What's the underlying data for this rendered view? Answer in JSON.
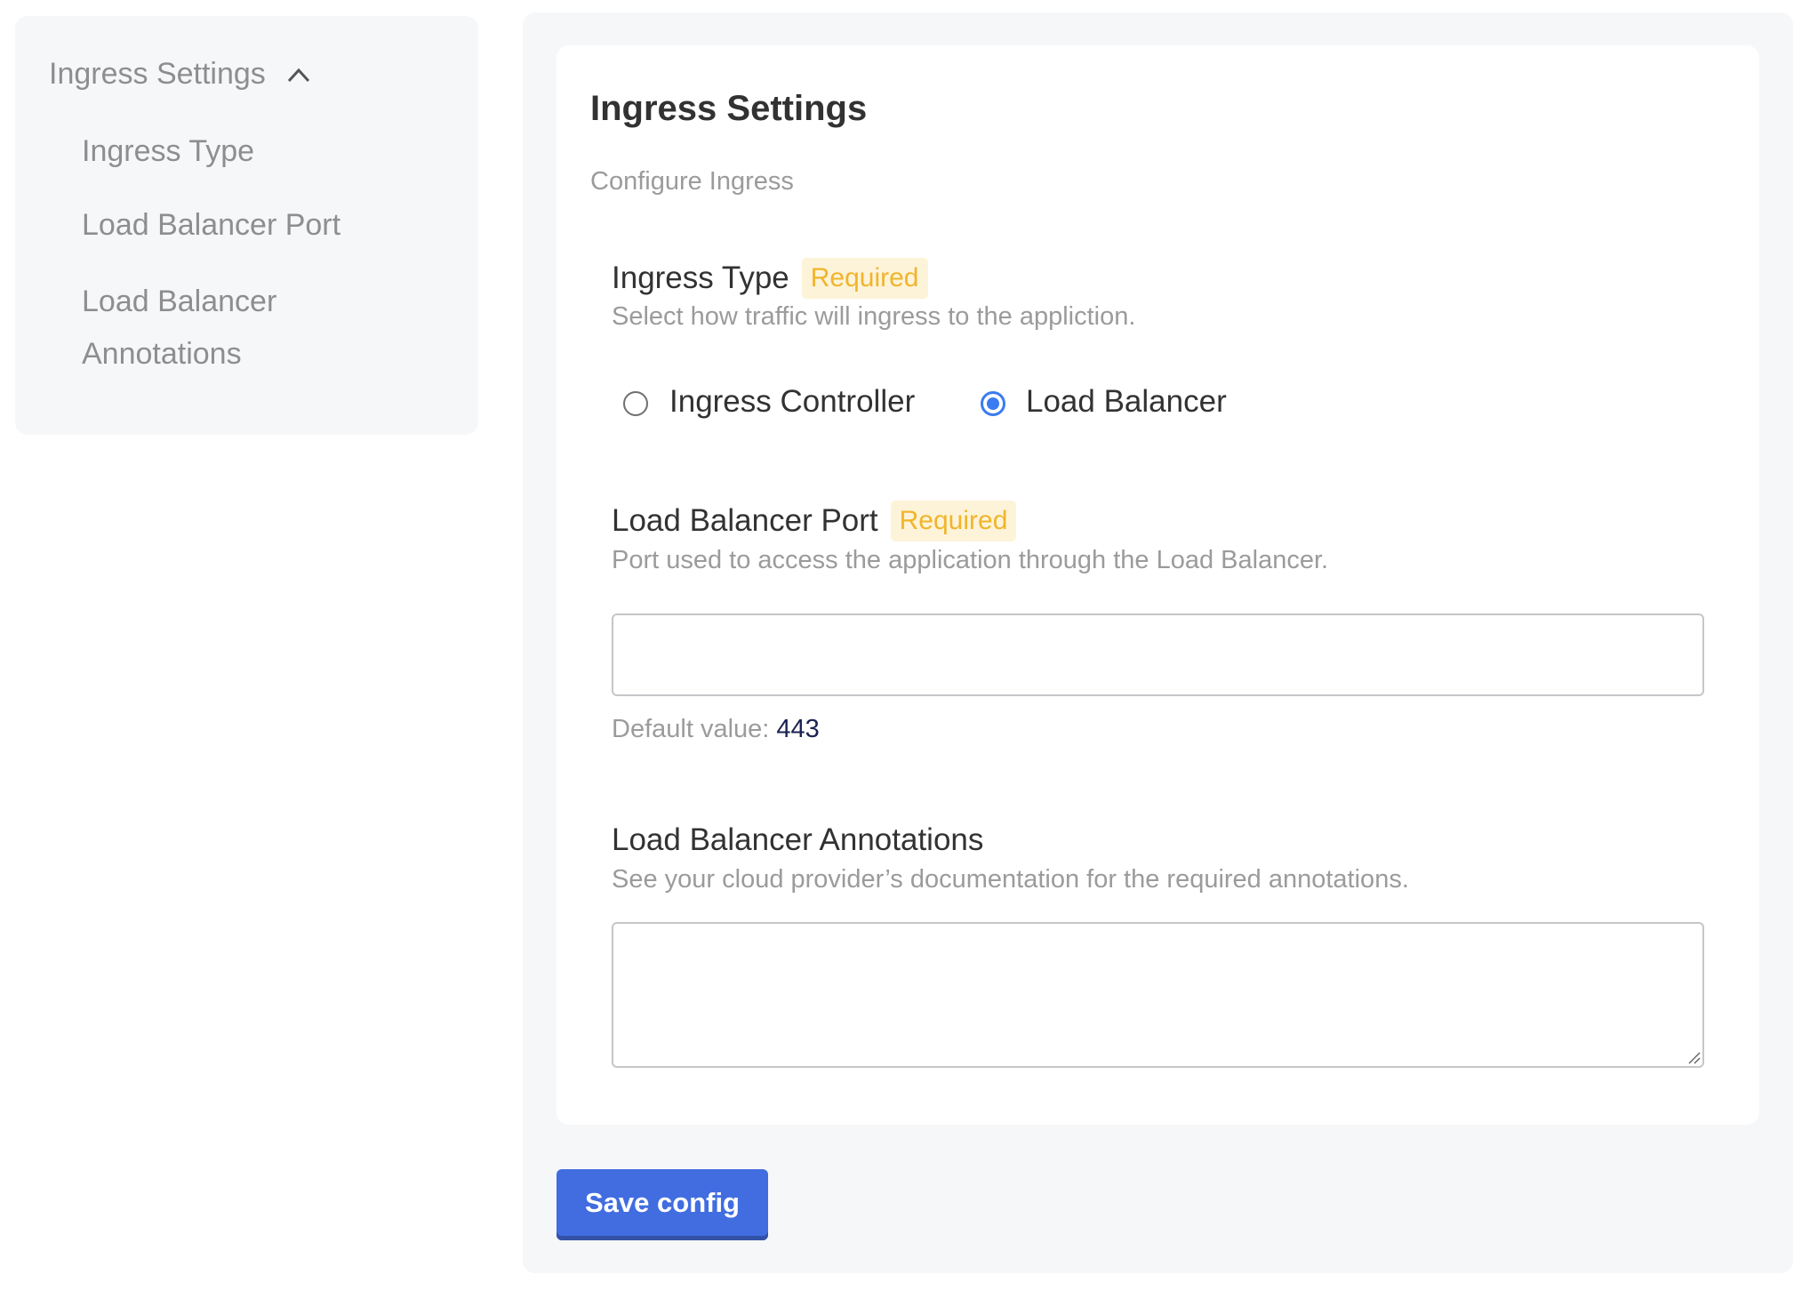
{
  "sidebar": {
    "header": "Ingress Settings",
    "header_icon": "chevron-up-icon",
    "items": [
      {
        "label": "Ingress Type"
      },
      {
        "label": "Load Balancer Port"
      },
      {
        "label_line1": "Load Balancer",
        "label_line2": "Annotations"
      }
    ]
  },
  "main": {
    "title": "Ingress Settings",
    "subtitle": "Configure Ingress",
    "ingress_type": {
      "label": "Ingress Type",
      "badge": "Required",
      "description": "Select how traffic will ingress to the appliction.",
      "options": [
        {
          "label": "Ingress Controller",
          "selected": false
        },
        {
          "label": "Load Balancer",
          "selected": true
        }
      ]
    },
    "lb_port": {
      "label": "Load Balancer Port",
      "badge": "Required",
      "description": "Port used to access the application through the Load Balancer.",
      "value": "",
      "default_label": "Default value:",
      "default_value": "443"
    },
    "lb_annotations": {
      "label": "Load Balancer Annotations",
      "description": "See your cloud provider’s documentation for the required annotations.",
      "value": ""
    },
    "save_label": "Save config"
  },
  "colors": {
    "accent": "#416de0",
    "radio": "#3a7bf1",
    "badge_text": "#f0b52c",
    "badge_bg": "#fdf3d8"
  }
}
